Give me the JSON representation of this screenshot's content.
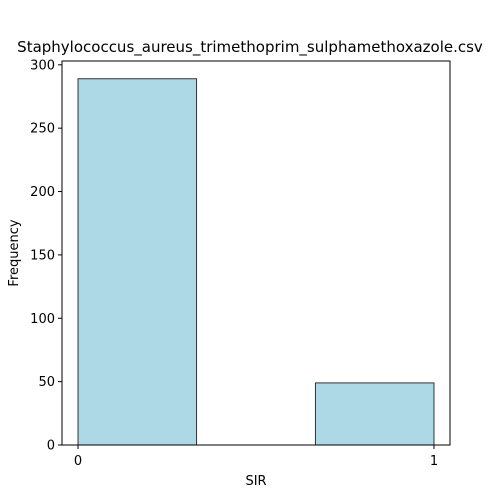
{
  "chart_data": {
    "type": "bar",
    "title": "Staphylococcus_aureus_trimethoprim_sulphamethoxazole.csv",
    "xlabel": "SIR",
    "ylabel": "Frequency",
    "bins": [
      {
        "start": 0.0,
        "end": 0.333,
        "value": 289
      },
      {
        "start": 0.667,
        "end": 1.0,
        "value": 49
      }
    ],
    "xlim": [
      -0.045,
      1.045
    ],
    "ylim": [
      0,
      303
    ],
    "x_ticks": [
      0,
      1
    ],
    "y_ticks": [
      0,
      50,
      100,
      150,
      200,
      250,
      300
    ],
    "bar_color": "#add8e6",
    "bar_edge_color": "#333333",
    "grid": false,
    "legend": "none"
  }
}
